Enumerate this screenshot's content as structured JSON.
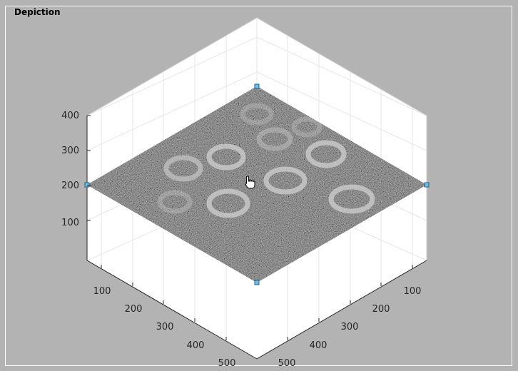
{
  "panel": {
    "title": "Depiction"
  },
  "axes": {
    "z_ticks": [
      "400",
      "300",
      "200",
      "100"
    ],
    "x_ticks": [
      "100",
      "200",
      "300",
      "400",
      "500"
    ],
    "y_ticks": [
      "100",
      "200",
      "300",
      "400",
      "500"
    ],
    "grid": true,
    "view": "3-D isometric view of an image plane"
  },
  "image_plane": {
    "content": "grayscale micrograph with ring-shaped particles",
    "handles": 4
  },
  "colors": {
    "background": "#b3b3b3",
    "axes_face": "#ffffff",
    "grid": "#e6e6e6",
    "handle": "#5aaee0"
  },
  "cursor": "hand-pointer-icon"
}
